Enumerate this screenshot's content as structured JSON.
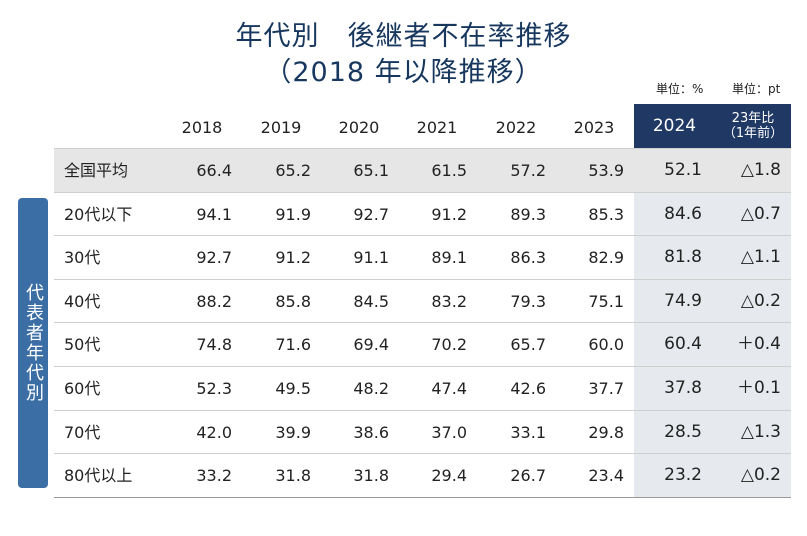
{
  "title_line1": "年代別　後継者不在率推移",
  "title_line2": "（2018 年以降推移）",
  "unit_percent": "単位：%",
  "unit_pt": "単位：pt",
  "side_label": "代表者年代別",
  "chart_data": {
    "type": "table",
    "columns": [
      "2018",
      "2019",
      "2020",
      "2021",
      "2022",
      "2023",
      "2024"
    ],
    "comparison_header": "23年比\n（1年前）",
    "rows": [
      {
        "label": "全国平均",
        "values": [
          "66.4",
          "65.2",
          "65.1",
          "61.5",
          "57.2",
          "53.9",
          "52.1"
        ],
        "change": "△1.8"
      },
      {
        "label": "20代以下",
        "values": [
          "94.1",
          "91.9",
          "92.7",
          "91.2",
          "89.3",
          "85.3",
          "84.6"
        ],
        "change": "△0.7"
      },
      {
        "label": "30代",
        "values": [
          "92.7",
          "91.2",
          "91.1",
          "89.1",
          "86.3",
          "82.9",
          "81.8"
        ],
        "change": "△1.1"
      },
      {
        "label": "40代",
        "values": [
          "88.2",
          "85.8",
          "84.5",
          "83.2",
          "79.3",
          "75.1",
          "74.9"
        ],
        "change": "△0.2"
      },
      {
        "label": "50代",
        "values": [
          "74.8",
          "71.6",
          "69.4",
          "70.2",
          "65.7",
          "60.0",
          "60.4"
        ],
        "change": "＋0.4"
      },
      {
        "label": "60代",
        "values": [
          "52.3",
          "49.5",
          "48.2",
          "47.4",
          "42.6",
          "37.7",
          "37.8"
        ],
        "change": "＋0.1"
      },
      {
        "label": "70代",
        "values": [
          "42.0",
          "39.9",
          "38.6",
          "37.0",
          "33.1",
          "29.8",
          "28.5"
        ],
        "change": "△1.3"
      },
      {
        "label": "80代以上",
        "values": [
          "33.2",
          "31.8",
          "31.8",
          "29.4",
          "26.7",
          "23.4",
          "23.2"
        ],
        "change": "△0.2"
      }
    ]
  }
}
